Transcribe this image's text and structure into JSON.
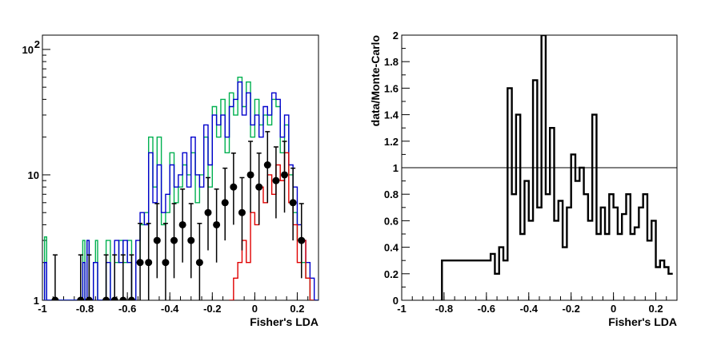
{
  "chart_data": [
    {
      "type": "histogram",
      "xlabel": "Fisher's LDA",
      "ylabel": "",
      "xlim": [
        -1.0,
        0.3
      ],
      "ylim": [
        1,
        130
      ],
      "log_y": true,
      "x_ticks": [
        "-1",
        "-0.8",
        "-0.6",
        "-0.4",
        "-0.2",
        "0",
        "0.2"
      ],
      "x_tick_values": [
        -1,
        -0.8,
        -0.6,
        -0.4,
        -0.2,
        0,
        0.2
      ],
      "y_ticks": [
        {
          "label": "1",
          "value": 1
        },
        {
          "label": "10",
          "value": 10
        },
        {
          "label": "10",
          "sup": "2",
          "value": 100
        }
      ],
      "series": [
        {
          "color": "#00b050",
          "style": "step",
          "x": [
            -0.99,
            -0.98,
            -0.97,
            -0.96,
            -0.81,
            -0.8,
            -0.79,
            -0.78,
            -0.76,
            -0.75,
            -0.74,
            -0.7,
            -0.68,
            -0.66,
            -0.64,
            -0.62,
            -0.6,
            -0.58,
            -0.56,
            -0.54,
            -0.52,
            -0.5,
            -0.48,
            -0.46,
            -0.44,
            -0.42,
            -0.4,
            -0.38,
            -0.36,
            -0.34,
            -0.32,
            -0.3,
            -0.28,
            -0.26,
            -0.24,
            -0.22,
            -0.2,
            -0.18,
            -0.16,
            -0.14,
            -0.12,
            -0.1,
            -0.08,
            -0.06,
            -0.04,
            -0.02,
            0.0,
            0.02,
            0.04,
            0.06,
            0.08,
            0.1,
            0.12,
            0.14,
            0.16,
            0.18,
            0.2,
            0.22,
            0.24,
            0.26,
            0.28
          ],
          "y": [
            3.2,
            1,
            1,
            1,
            3,
            1,
            3,
            1,
            2,
            3,
            1,
            3,
            1,
            2,
            3,
            2,
            3,
            1,
            2,
            4,
            5,
            20,
            8,
            20,
            4,
            5,
            15,
            6,
            8,
            12,
            10,
            15,
            6,
            10,
            20,
            8,
            35,
            20,
            40,
            15,
            45,
            30,
            60,
            35,
            55,
            20,
            40,
            25,
            30,
            25,
            40,
            35,
            15,
            25,
            10,
            5,
            3,
            2,
            1.5,
            1,
            1
          ]
        },
        {
          "color": "#0000cc",
          "style": "step",
          "x": [
            -0.99,
            -0.98,
            -0.97,
            -0.96,
            -0.81,
            -0.8,
            -0.79,
            -0.78,
            -0.76,
            -0.75,
            -0.74,
            -0.7,
            -0.68,
            -0.66,
            -0.64,
            -0.62,
            -0.6,
            -0.58,
            -0.56,
            -0.54,
            -0.52,
            -0.5,
            -0.48,
            -0.46,
            -0.44,
            -0.42,
            -0.4,
            -0.38,
            -0.36,
            -0.34,
            -0.32,
            -0.3,
            -0.28,
            -0.26,
            -0.24,
            -0.22,
            -0.2,
            -0.18,
            -0.16,
            -0.14,
            -0.12,
            -0.1,
            -0.08,
            -0.06,
            -0.04,
            -0.02,
            0.0,
            0.02,
            0.04,
            0.06,
            0.08,
            0.1,
            0.12,
            0.14,
            0.16,
            0.18,
            0.2,
            0.22,
            0.24,
            0.26,
            0.28
          ],
          "y": [
            2,
            1,
            1,
            1,
            2,
            1,
            3,
            1,
            2,
            2,
            1,
            2,
            1,
            3,
            2,
            3,
            2,
            1,
            3,
            5,
            4,
            15,
            6,
            12,
            5,
            7,
            12,
            8,
            10,
            15,
            8,
            20,
            10,
            8,
            25,
            12,
            30,
            25,
            30,
            20,
            35,
            40,
            55,
            30,
            45,
            25,
            30,
            20,
            35,
            30,
            45,
            40,
            20,
            30,
            12,
            8,
            4,
            3,
            2,
            1.5,
            1
          ]
        },
        {
          "color": "#e00000",
          "style": "step",
          "x": [
            -0.12,
            -0.1,
            -0.08,
            -0.06,
            -0.04,
            -0.02,
            0.0,
            0.02,
            0.04,
            0.06,
            0.08,
            0.1,
            0.12,
            0.14,
            0.16,
            0.18,
            0.2,
            0.22,
            0.24,
            0.26
          ],
          "y": [
            1,
            1.5,
            2,
            3,
            2,
            5,
            4,
            8,
            6,
            10,
            7,
            12,
            9,
            15,
            6,
            4,
            2,
            3,
            1.5,
            1
          ]
        },
        {
          "color": "#000000",
          "style": "points",
          "x": [
            -0.94,
            -0.82,
            -0.78,
            -0.7,
            -0.66,
            -0.62,
            -0.58,
            -0.54,
            -0.5,
            -0.46,
            -0.42,
            -0.38,
            -0.34,
            -0.3,
            -0.26,
            -0.22,
            -0.18,
            -0.14,
            -0.1,
            -0.06,
            -0.02,
            0.02,
            0.06,
            0.1,
            0.14,
            0.18,
            0.22
          ],
          "y": [
            1,
            1,
            1,
            1,
            1,
            1,
            1,
            2,
            2,
            3,
            2,
            3,
            4,
            3,
            2,
            5,
            4,
            6,
            8,
            5,
            10,
            8,
            12,
            9,
            10,
            6,
            3
          ]
        }
      ]
    },
    {
      "type": "histogram",
      "xlabel": "Fisher's LDA",
      "ylabel": "data/Monte-Carlo",
      "xlim": [
        -1.0,
        0.3
      ],
      "ylim": [
        0,
        2
      ],
      "reference_line": 1,
      "x_ticks": [
        "-1",
        "-0.8",
        "-0.6",
        "-0.4",
        "-0.2",
        "0",
        "0.2"
      ],
      "x_tick_values": [
        -1,
        -0.8,
        -0.6,
        -0.4,
        -0.2,
        0,
        0.2
      ],
      "y_ticks": [
        "0",
        "0.2",
        "0.4",
        "0.6",
        "0.8",
        "1",
        "1.2",
        "1.4",
        "1.6",
        "1.8",
        "2"
      ],
      "y_tick_values": [
        0,
        0.2,
        0.4,
        0.6,
        0.8,
        1.0,
        1.2,
        1.4,
        1.6,
        1.8,
        2.0
      ],
      "series": [
        {
          "color": "#000000",
          "style": "step",
          "x": [
            -0.81,
            -0.6,
            -0.58,
            -0.56,
            -0.54,
            -0.52,
            -0.5,
            -0.48,
            -0.46,
            -0.44,
            -0.42,
            -0.4,
            -0.38,
            -0.36,
            -0.34,
            -0.32,
            -0.3,
            -0.28,
            -0.26,
            -0.24,
            -0.22,
            -0.2,
            -0.18,
            -0.16,
            -0.14,
            -0.12,
            -0.1,
            -0.08,
            -0.06,
            -0.04,
            -0.02,
            0.0,
            0.02,
            0.04,
            0.06,
            0.08,
            0.1,
            0.12,
            0.14,
            0.16,
            0.18,
            0.2,
            0.22,
            0.24,
            0.26
          ],
          "y": [
            0.3,
            0.3,
            0.35,
            0.2,
            0.4,
            0.3,
            1.6,
            0.8,
            1.4,
            0.5,
            0.9,
            0.6,
            1.66,
            0.7,
            2.0,
            0.8,
            1.3,
            0.6,
            0.75,
            0.4,
            0.7,
            1.1,
            0.9,
            1.0,
            0.8,
            0.6,
            1.4,
            0.5,
            0.7,
            0.5,
            0.8,
            0.7,
            0.5,
            0.65,
            0.8,
            0.5,
            0.55,
            0.7,
            0.8,
            0.45,
            0.6,
            0.25,
            0.3,
            0.25,
            0.2
          ]
        }
      ]
    }
  ]
}
